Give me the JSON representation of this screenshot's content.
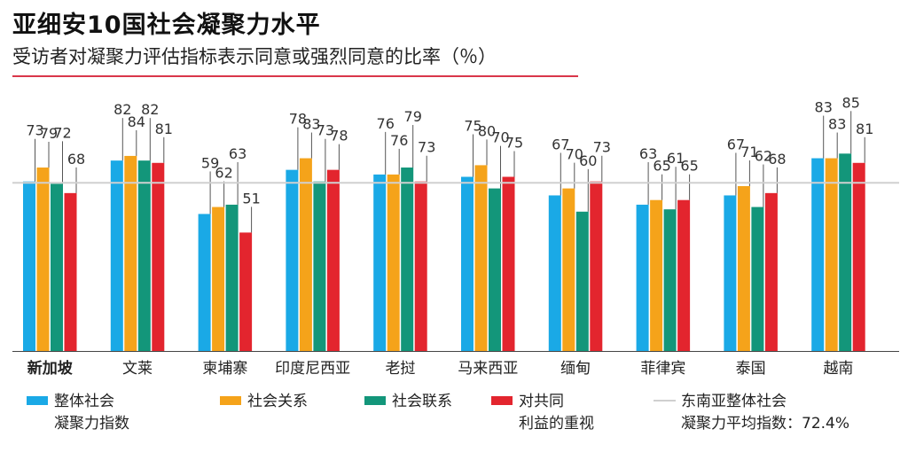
{
  "title": "亚细安10国社会凝聚力水平",
  "subtitle": "受访者对凝聚力评估指标表示同意或强烈同意的比率（％）",
  "chart_data": {
    "type": "bar",
    "categories": [
      "新加坡",
      "文莱",
      "柬埔寨",
      "印度尼西亚",
      "老挝",
      "马来西亚",
      "缅甸",
      "菲律宾",
      "泰国",
      "越南"
    ],
    "highlight_category": "新加坡",
    "series": [
      {
        "name": "整体社会凝聚力指数",
        "color": "#1aa9e6",
        "values": [
          73,
          82,
          59,
          78,
          76,
          75,
          67,
          63,
          67,
          83
        ]
      },
      {
        "name": "社会关系",
        "color": "#f5a31a",
        "values": [
          79,
          84,
          62,
          83,
          76,
          80,
          70,
          65,
          71,
          83
        ]
      },
      {
        "name": "社会联系",
        "color": "#13967a",
        "values": [
          72,
          82,
          63,
          73,
          79,
          70,
          60,
          61,
          62,
          85
        ]
      },
      {
        "name": "对共同利益的重视",
        "color": "#e3252e",
        "values": [
          68,
          81,
          51,
          78,
          73,
          75,
          73,
          65,
          68,
          81
        ]
      }
    ],
    "reference_line": {
      "label": "东南亚整体社会凝聚力平均指数：72.4%",
      "value": 72.4,
      "color": "#d0d0d0"
    },
    "ylim": [
      0,
      100
    ],
    "grid": false,
    "legend_position": "bottom"
  },
  "legend": [
    {
      "lines": [
        "整体社会",
        "凝聚力指数"
      ],
      "color": "#1aa9e6"
    },
    {
      "lines": [
        "社会关系"
      ],
      "color": "#f5a31a"
    },
    {
      "lines": [
        "社会联系"
      ],
      "color": "#13967a"
    },
    {
      "lines": [
        "对共同",
        "利益的重视"
      ],
      "color": "#e3252e"
    },
    {
      "lines": [
        "东南亚整体社会",
        "凝聚力平均指数：72.4%"
      ],
      "color": "#d0d0d0"
    }
  ]
}
